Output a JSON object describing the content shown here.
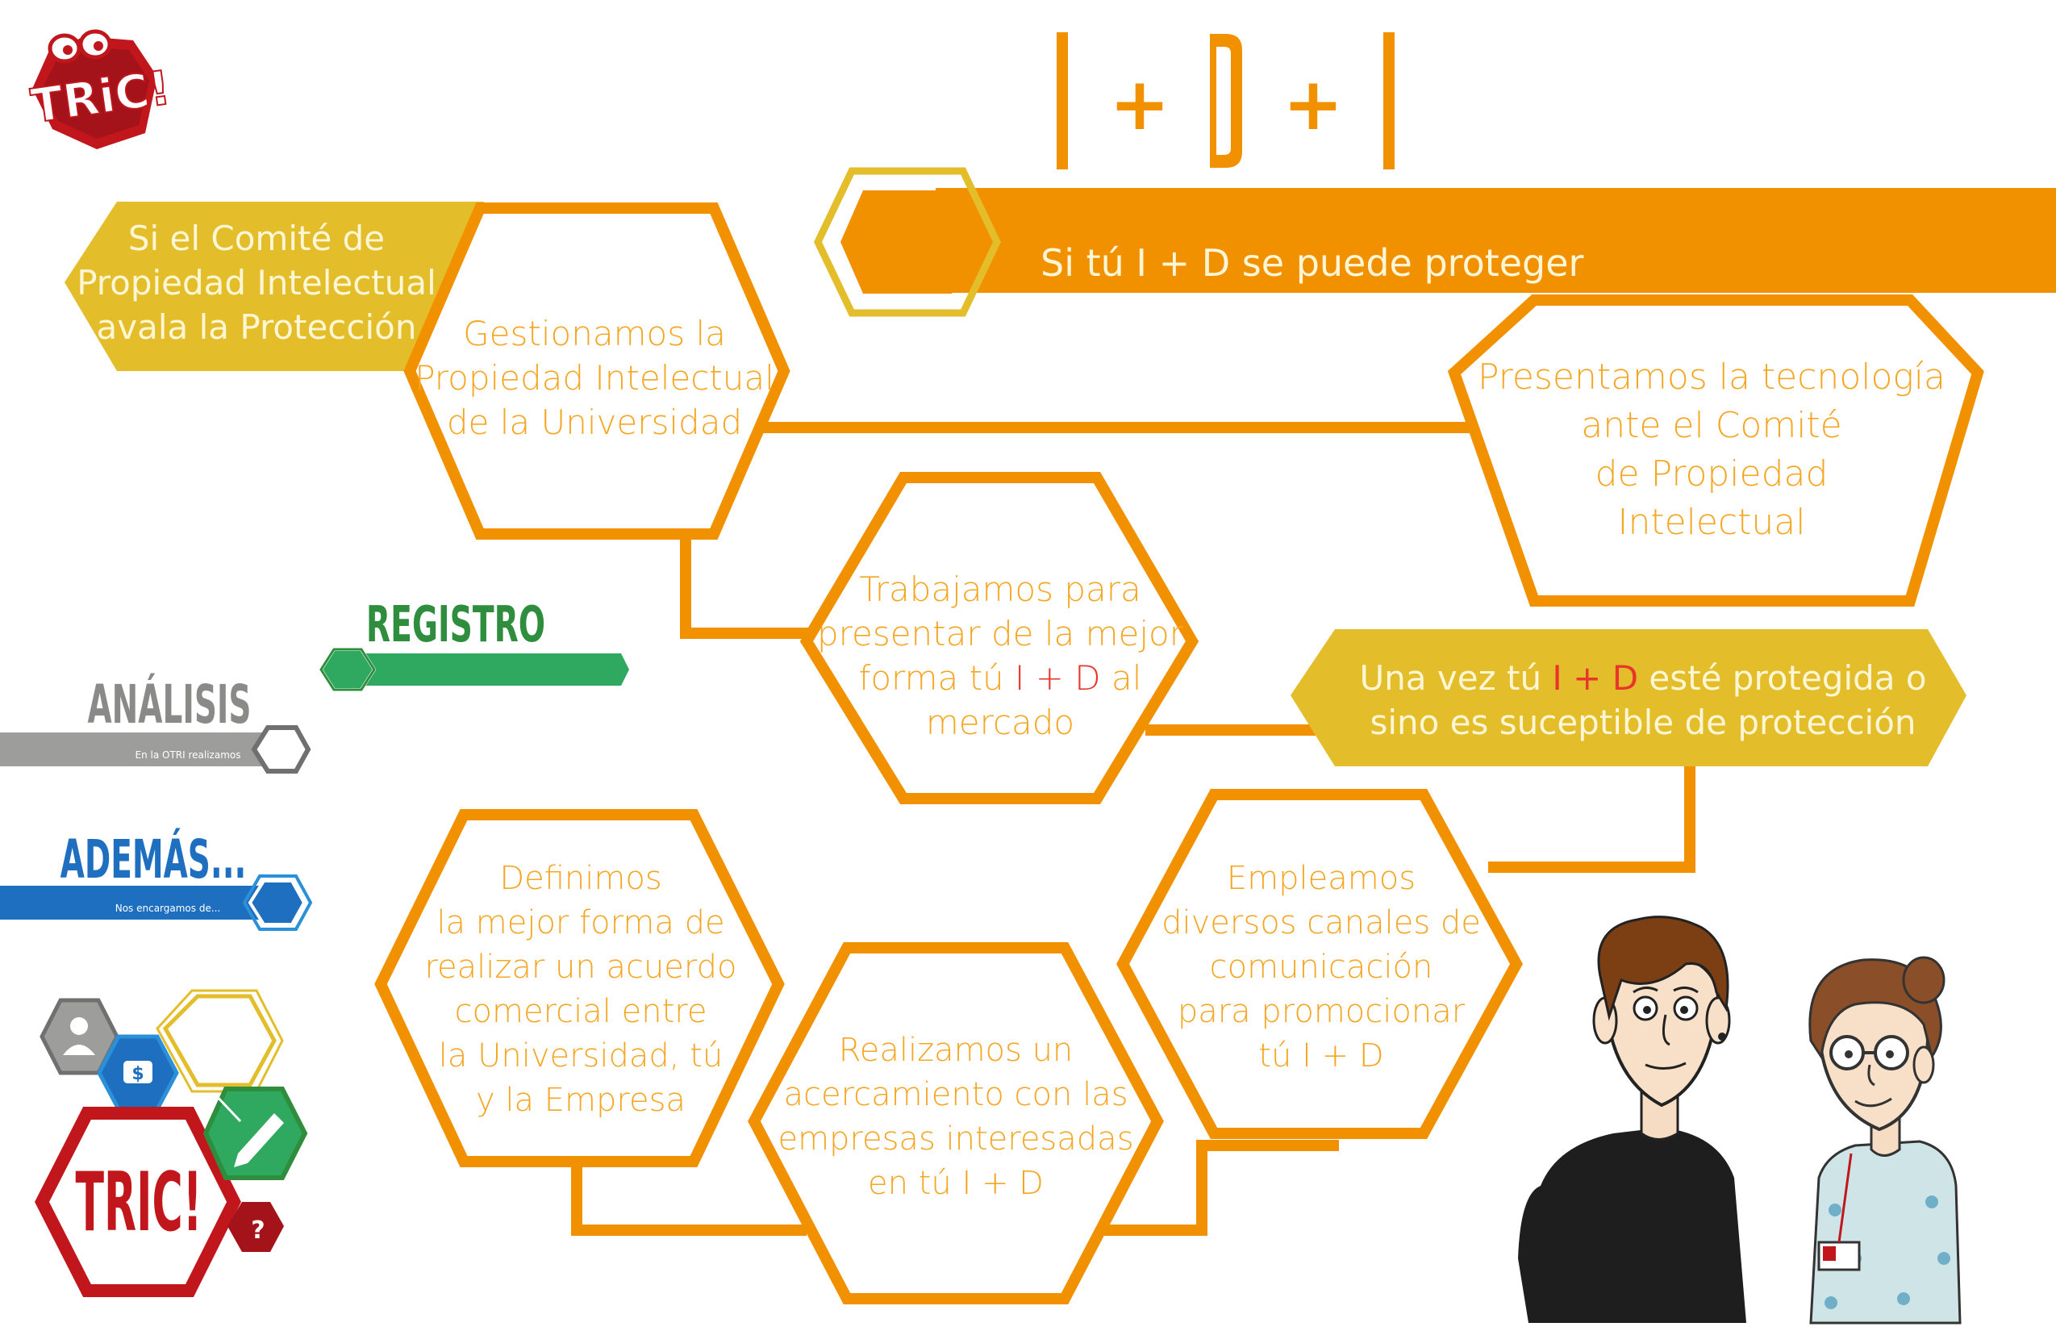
{
  "colors": {
    "orange": "#f29100",
    "light_orange": "#f5a623",
    "yellow": "#e3be2a",
    "green": "#2fa860",
    "grey": "#9d9d9c",
    "blue": "#1f6fc0",
    "red": "#c0161c",
    "dark_green": "#2e8e3e",
    "accent_red": "#e8362d"
  },
  "title": {
    "part1": "I",
    "plus1": "+",
    "part2": "D",
    "plus2": "+",
    "part3": "I"
  },
  "logo": {
    "text": "TRiC!",
    "eyes": "OO"
  },
  "top_banner": {
    "text": "Si tú I + D  se puede proteger"
  },
  "left_banner": {
    "lines": [
      "Si el Comité de",
      "Propiedad Intelectual",
      "avala la Protección"
    ]
  },
  "right_banner": {
    "line1_pre": "Una vez  tú ",
    "line1_hl": "I + D",
    "line1_post": " esté protegida o",
    "line2": "sino es suceptible de protección"
  },
  "hexagons": {
    "gestionamos": [
      "Gestionamos la",
      "Propiedad Intelectual",
      "de la Universidad"
    ],
    "presentamos": [
      "Presentamos la tecnología",
      "ante el Comité",
      "de Propiedad",
      "Intelectual"
    ],
    "trabajamos": {
      "l1": "Trabajamos para",
      "l2": "presentar de la mejor",
      "l3_pre": "forma tú ",
      "l3_hl": "I + D",
      "l3_post": " al",
      "l4": "mercado"
    },
    "definimos": [
      "Definimos",
      "la mejor forma de",
      "realizar un acuerdo",
      "comercial entre",
      "la Universidad, tú",
      "y la Empresa"
    ],
    "realizamos": [
      "Realizamos un",
      "acercamiento con las",
      "empresas interesadas",
      "en tú I + D"
    ],
    "empleamos": [
      "Empleamos",
      "diversos canales de",
      "comunicación",
      "para promocionar",
      "tú I + D"
    ]
  },
  "nav": {
    "registro": {
      "label": "REGISTRO"
    },
    "analisis": {
      "label": "ANÁLISIS",
      "sub": "En la OTRI realizamos"
    },
    "ademas": {
      "label": "ADEMÁS...",
      "sub": "Nos encargamos de..."
    }
  },
  "bottom_logo": {
    "text": "TRIC!",
    "question": "?",
    "money": "$"
  }
}
